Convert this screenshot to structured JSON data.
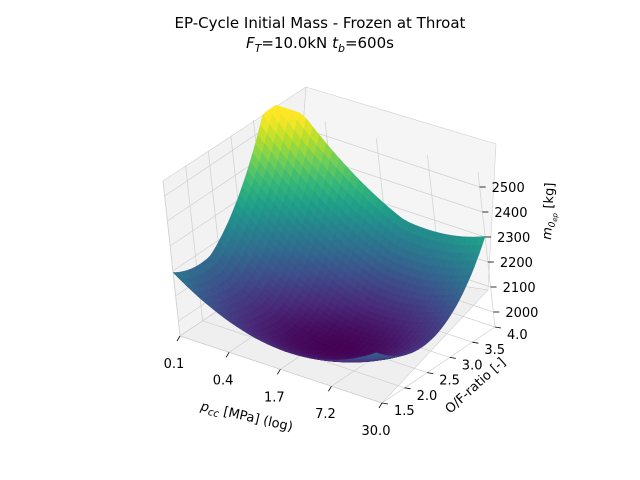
{
  "title": {
    "line1": "EP-Cycle Initial Mass - Frozen at Throat",
    "line2_prefix": "F",
    "line2_sub1": "T",
    "line2_mid": "=10.0kN ",
    "line2_t": "t",
    "line2_sub2": "b",
    "line2_suffix": "=600s"
  },
  "chart_data": {
    "type": "surface3d",
    "title": "EP-Cycle Initial Mass - Frozen at Throat",
    "subtitle": "F_T=10.0kN t_b=600s",
    "xlabel": "p_cc [MPa] (log)",
    "ylabel": "O/F-ratio [-]",
    "zlabel": "m_0_ep [kg]",
    "x_ticks": [
      "0.1",
      "0.4",
      "1.7",
      "7.2",
      "30.0"
    ],
    "x_scale": "log",
    "xlim": [
      0.1,
      30.0
    ],
    "y_ticks": [
      "1.5",
      "2.0",
      "2.5",
      "3.0",
      "3.5",
      "4.0"
    ],
    "ylim": [
      1.5,
      4.0
    ],
    "z_ticks": [
      "2000",
      "2100",
      "2200",
      "2300",
      "2400",
      "2500"
    ],
    "zlim": [
      1940,
      2560
    ],
    "colormap": "viridis",
    "grid": true,
    "corner_values": [
      {
        "p_cc": 0.1,
        "of": 1.5,
        "m0": 2270
      },
      {
        "p_cc": 0.1,
        "of": 4.0,
        "m0": 2545
      },
      {
        "p_cc": 30.0,
        "of": 1.5,
        "m0": 2140
      },
      {
        "p_cc": 30.0,
        "of": 4.0,
        "m0": 2100
      }
    ],
    "minimum": {
      "p_cc": 3.0,
      "of": 2.3,
      "m0": 1955
    }
  },
  "axis_labels": {
    "x_main": "p",
    "x_sub": "cc",
    "x_rest": " [MPa] (log)",
    "y_label": "O/F-ratio [-]",
    "z_main": "m",
    "z_sub": "0",
    "z_subsub": "ep",
    "z_rest": " [kg]"
  }
}
